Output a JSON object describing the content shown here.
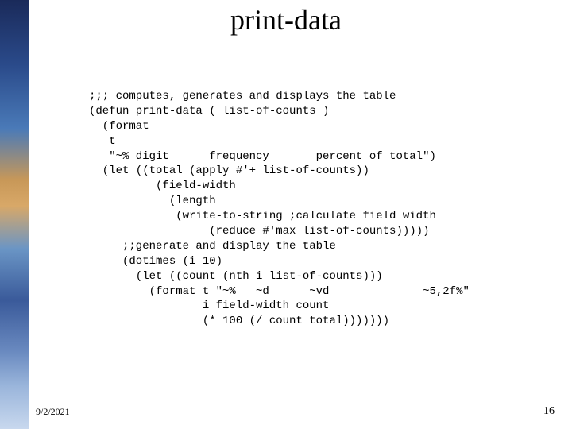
{
  "title": "print-data",
  "code": ";;; computes, generates and displays the table\n(defun print-data ( list-of-counts )\n  (format\n   t\n   \"~% digit      frequency       percent of total\")\n  (let ((total (apply #'+ list-of-counts))\n          (field-width\n            (length\n             (write-to-string ;calculate field width\n                  (reduce #'max list-of-counts)))))\n     ;;generate and display the table\n     (dotimes (i 10)\n       (let ((count (nth i list-of-counts)))\n         (format t \"~%   ~d      ~vd              ~5,2f%\"\n                 i field-width count\n                 (* 100 (/ count total)))))))",
  "footer_date": "9/2/2021",
  "footer_page": "16"
}
